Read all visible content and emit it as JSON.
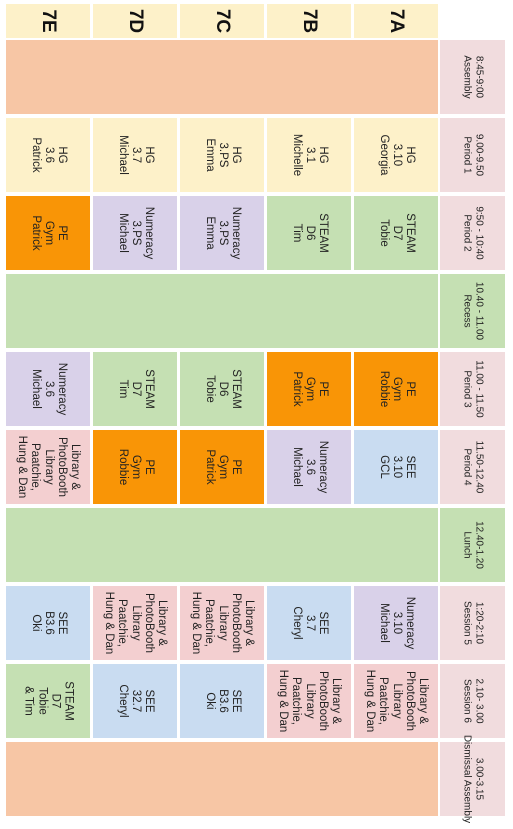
{
  "colors": {
    "class_header": "#fdf1c9",
    "assembly": "#f7c6a5",
    "period1": "#fdf1c9",
    "green": "#c5e0b3",
    "purple": "#d9d1e9",
    "orange": "#f99506",
    "pink": "#f3cfd0",
    "blue": "#c9dcf1",
    "period_label": "#f1dcde"
  },
  "classes": [
    "7A",
    "7B",
    "7C",
    "7D",
    "7E"
  ],
  "periods": [
    {
      "label": "Assembly",
      "time": "8:45-9:00"
    },
    {
      "label": "Period 1",
      "time": "9.00-9.50"
    },
    {
      "label": "Period 2",
      "time": "9:50 - 10:40"
    },
    {
      "label": "Recess",
      "time": "10.40 - 11.00",
      "color": "green"
    },
    {
      "label": "Period 3",
      "time": "11.00 - 11.50"
    },
    {
      "label": "Period 4",
      "time": "11.50-12.40"
    },
    {
      "label": "Lunch",
      "time": "12.40-1.20",
      "color": "green"
    },
    {
      "label": "Session 5",
      "time": "1:20-2:10"
    },
    {
      "label": "Session 6",
      "time": "2.10- 3.00"
    },
    {
      "label": "Dismissal Assembly",
      "time": "3.00-3.15"
    }
  ],
  "bands": [
    {
      "period": 0,
      "label": "",
      "color": "assembly"
    },
    {
      "period": 3,
      "label": "",
      "color": "green"
    },
    {
      "period": 6,
      "label": "",
      "color": "green"
    },
    {
      "period": 9,
      "label": "",
      "color": "assembly"
    }
  ],
  "lessons": [
    [
      null,
      {
        "color": "period1",
        "lines": [
          "HG",
          "3.10",
          "Georgia"
        ]
      },
      {
        "color": "green",
        "lines": [
          "STEAM",
          "D7",
          "Tobie"
        ]
      },
      null,
      {
        "color": "orange",
        "lines": [
          "PE",
          "Gym",
          "Robbie"
        ]
      },
      {
        "color": "blue",
        "lines": [
          "SEE",
          "3.10",
          "GCL"
        ]
      },
      null,
      {
        "color": "purple",
        "lines": [
          "Numeracy",
          "3.10",
          "Michael"
        ]
      },
      {
        "color": "pink",
        "lines": [
          "Library &",
          "PhotoBooth",
          "Library",
          "Paatchie,",
          "Hung & Dan"
        ]
      },
      null
    ],
    [
      null,
      {
        "color": "period1",
        "lines": [
          "HG",
          "3.1",
          "Michelle"
        ]
      },
      {
        "color": "green",
        "lines": [
          "STEAM",
          "D6",
          "Tim"
        ]
      },
      null,
      {
        "color": "orange",
        "lines": [
          "PE",
          "Gym",
          "Patrick"
        ]
      },
      {
        "color": "purple",
        "lines": [
          "Numeracy",
          "3.6",
          "Michael"
        ]
      },
      null,
      {
        "color": "blue",
        "lines": [
          "SEE",
          "3.7",
          "Cheryl"
        ]
      },
      {
        "color": "pink",
        "lines": [
          "Library &",
          "PhotoBooth",
          "Library",
          "Paatchie,",
          "Hung & Dan"
        ]
      },
      null
    ],
    [
      null,
      {
        "color": "period1",
        "lines": [
          "HG",
          "3.PS",
          "Emma"
        ]
      },
      {
        "color": "purple",
        "lines": [
          "Numeracy",
          "3.PS",
          "Emma"
        ]
      },
      null,
      {
        "color": "green",
        "lines": [
          "STEAM",
          "D6",
          "Tobie"
        ]
      },
      {
        "color": "orange",
        "lines": [
          "PE",
          "Gym",
          "Patrick"
        ]
      },
      null,
      {
        "color": "pink",
        "lines": [
          "Library &",
          "PhotoBooth",
          "Library",
          "Paatchie,",
          "Hung & Dan"
        ]
      },
      {
        "color": "blue",
        "lines": [
          "SEE",
          "B3.6",
          "Oki"
        ]
      },
      null
    ],
    [
      null,
      {
        "color": "period1",
        "lines": [
          "HG",
          "3.7",
          "Michael"
        ]
      },
      {
        "color": "purple",
        "lines": [
          "Numeracy",
          "3.PS",
          "Michael"
        ]
      },
      null,
      {
        "color": "green",
        "lines": [
          "STEAM",
          "D7",
          "Tim"
        ]
      },
      {
        "color": "orange",
        "lines": [
          "PE",
          "Gym",
          "Robbie"
        ]
      },
      null,
      {
        "color": "pink",
        "lines": [
          "Library &",
          "PhotoBooth",
          "Library",
          "Paatchie,",
          "Hung & Dan"
        ]
      },
      {
        "color": "blue",
        "lines": [
          "SEE",
          "32.7",
          "Cheryl"
        ]
      },
      null
    ],
    [
      null,
      {
        "color": "period1",
        "lines": [
          "HG",
          "3.6",
          "Patrick"
        ]
      },
      {
        "color": "orange",
        "lines": [
          "PE",
          "Gym",
          "Patrick"
        ]
      },
      null,
      {
        "color": "purple",
        "lines": [
          "Numeracy",
          "3.6",
          "Michael"
        ]
      },
      {
        "color": "pink",
        "lines": [
          "Library &",
          "PhotoBooth",
          "Library",
          "Paatchie,",
          "Hung & Dan"
        ]
      },
      null,
      {
        "color": "blue",
        "lines": [
          "SEE",
          "B3.6",
          "Oki"
        ]
      },
      {
        "color": "green",
        "lines": [
          "STEAM",
          "D7",
          "Tobie",
          "& Tim"
        ]
      },
      null
    ]
  ]
}
